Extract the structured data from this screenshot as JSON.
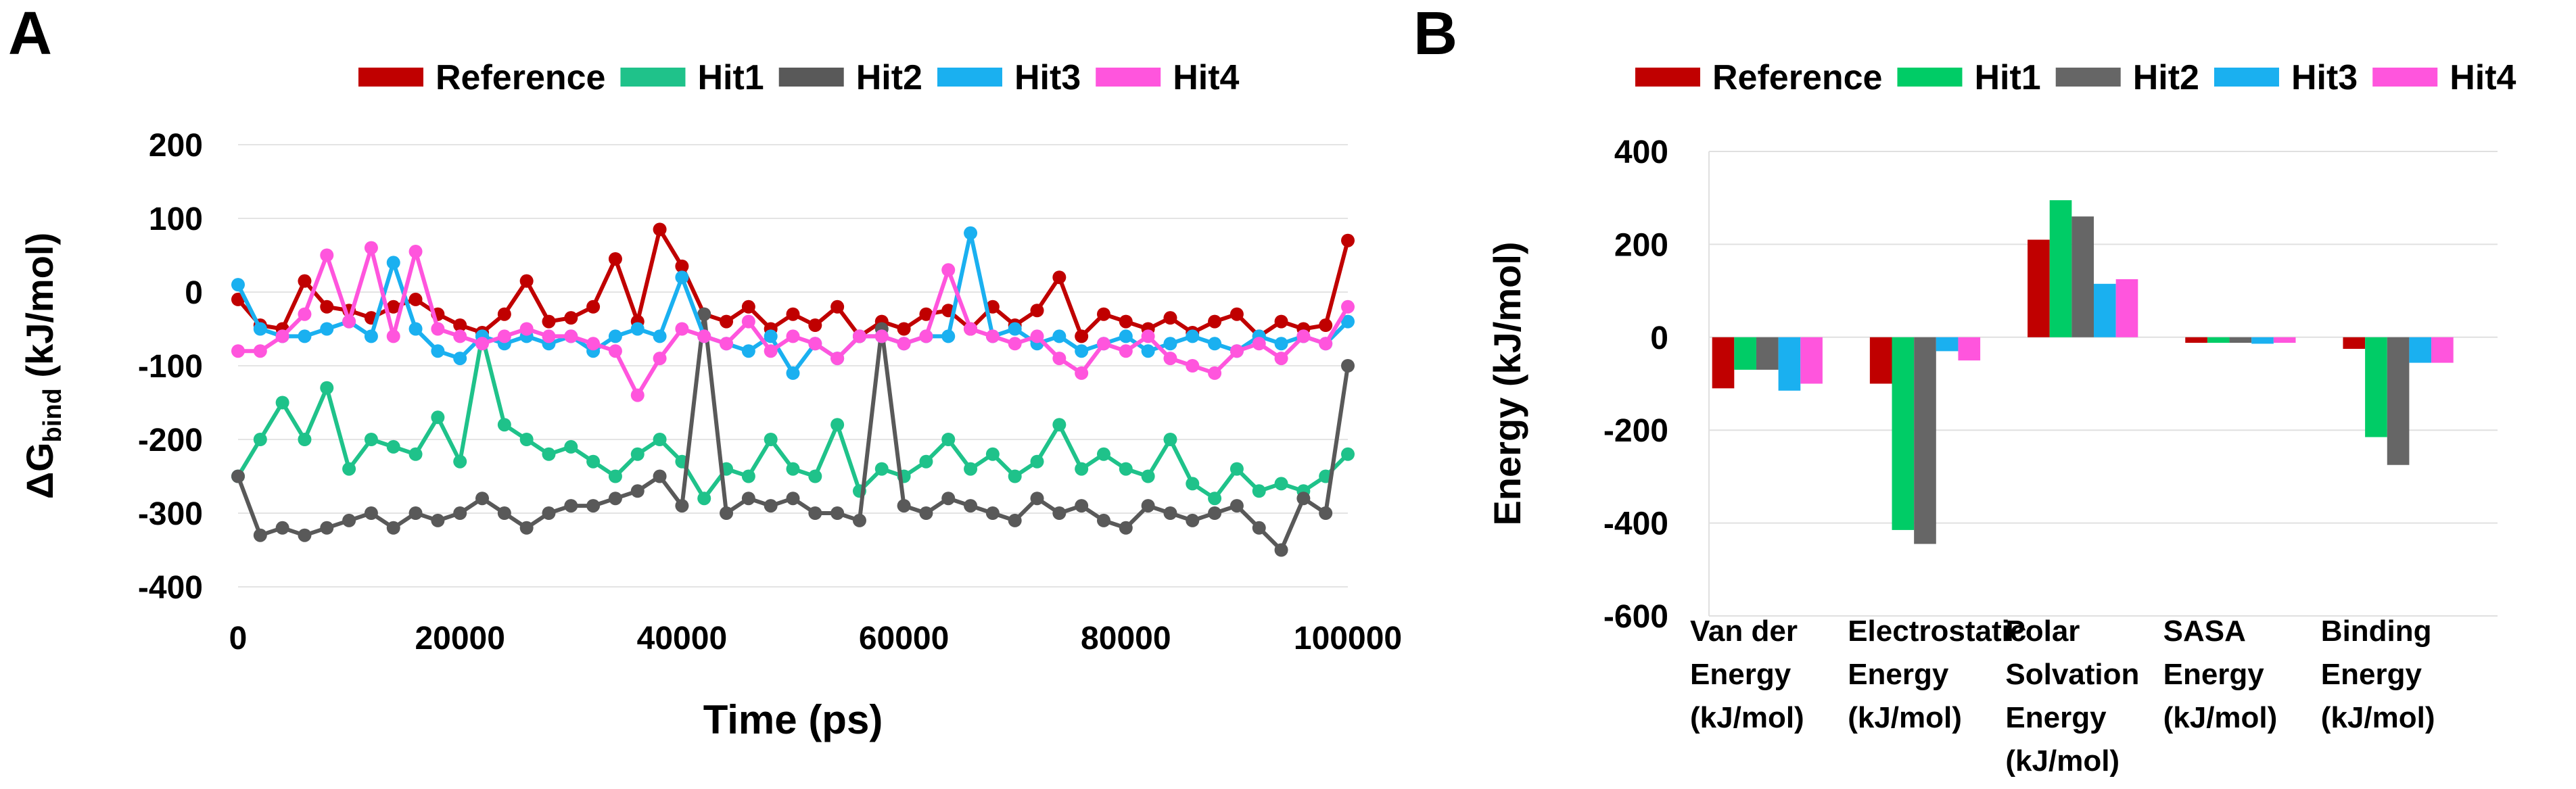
{
  "chart_data": [
    {
      "type": "line",
      "panel": "A",
      "xlabel": "Time (ps)",
      "ylabel": [
        "ΔG",
        "bind",
        " (kJ/mol)"
      ],
      "x": [
        0,
        2000,
        4000,
        6000,
        8000,
        10000,
        12000,
        14000,
        16000,
        18000,
        20000,
        22000,
        24000,
        26000,
        28000,
        30000,
        32000,
        34000,
        36000,
        38000,
        40000,
        42000,
        44000,
        46000,
        48000,
        50000,
        52000,
        54000,
        56000,
        58000,
        60000,
        62000,
        64000,
        66000,
        68000,
        70000,
        72000,
        74000,
        76000,
        78000,
        80000,
        82000,
        84000,
        86000,
        88000,
        90000,
        92000,
        94000,
        96000,
        98000,
        100000
      ],
      "xlim": [
        0,
        100000
      ],
      "xticks": [
        0,
        20000,
        40000,
        60000,
        80000,
        100000
      ],
      "ylim": [
        -400,
        200
      ],
      "yticks": [
        -400,
        -300,
        -200,
        -100,
        0,
        100,
        200
      ],
      "grid": true,
      "legend": "top",
      "series": [
        {
          "name": "Reference",
          "color": "#c00000",
          "values": [
            -10,
            -45,
            -50,
            15,
            -20,
            -25,
            -35,
            -20,
            -10,
            -30,
            -45,
            -55,
            -30,
            15,
            -40,
            -35,
            -20,
            45,
            -40,
            85,
            35,
            -30,
            -40,
            -20,
            -50,
            -30,
            -45,
            -20,
            -60,
            -40,
            -50,
            -30,
            -25,
            -50,
            -20,
            -45,
            -25,
            20,
            -60,
            -30,
            -40,
            -50,
            -35,
            -55,
            -40,
            -30,
            -60,
            -40,
            -50,
            -45,
            70
          ]
        },
        {
          "name": "Hit1",
          "color": "#1fc28a",
          "values": [
            -250,
            -200,
            -150,
            -200,
            -130,
            -240,
            -200,
            -210,
            -220,
            -170,
            -230,
            -60,
            -180,
            -200,
            -220,
            -210,
            -230,
            -250,
            -220,
            -200,
            -230,
            -280,
            -240,
            -250,
            -200,
            -240,
            -250,
            -180,
            -270,
            -240,
            -250,
            -230,
            -200,
            -240,
            -220,
            -250,
            -230,
            -180,
            -240,
            -220,
            -240,
            -250,
            -200,
            -260,
            -280,
            -240,
            -270,
            -260,
            -270,
            -250,
            -220
          ]
        },
        {
          "name": "Hit2",
          "color": "#595959",
          "values": [
            -250,
            -330,
            -320,
            -330,
            -320,
            -310,
            -300,
            -320,
            -300,
            -310,
            -300,
            -280,
            -300,
            -320,
            -300,
            -290,
            -290,
            -280,
            -270,
            -250,
            -290,
            -30,
            -300,
            -280,
            -290,
            -280,
            -300,
            -300,
            -310,
            -50,
            -290,
            -300,
            -280,
            -290,
            -300,
            -310,
            -280,
            -300,
            -290,
            -310,
            -320,
            -290,
            -300,
            -310,
            -300,
            -290,
            -320,
            -350,
            -280,
            -300,
            -100
          ]
        },
        {
          "name": "Hit3",
          "color": "#1ab0f0",
          "values": [
            10,
            -50,
            -60,
            -60,
            -50,
            -40,
            -60,
            40,
            -50,
            -80,
            -90,
            -60,
            -70,
            -60,
            -70,
            -60,
            -80,
            -60,
            -50,
            -60,
            20,
            -60,
            -70,
            -80,
            -60,
            -110,
            -70,
            -90,
            -60,
            -60,
            -70,
            -60,
            -60,
            80,
            -60,
            -50,
            -70,
            -60,
            -80,
            -70,
            -60,
            -80,
            -70,
            -60,
            -70,
            -80,
            -60,
            -70,
            -60,
            -70,
            -40
          ]
        },
        {
          "name": "Hit4",
          "color": "#ff55dd",
          "values": [
            -80,
            -80,
            -60,
            -30,
            50,
            -40,
            60,
            -60,
            55,
            -50,
            -60,
            -70,
            -60,
            -50,
            -60,
            -60,
            -70,
            -80,
            -140,
            -90,
            -50,
            -60,
            -70,
            -40,
            -80,
            -60,
            -70,
            -90,
            -60,
            -60,
            -70,
            -60,
            30,
            -50,
            -60,
            -70,
            -60,
            -90,
            -110,
            -70,
            -80,
            -60,
            -90,
            -100,
            -110,
            -80,
            -70,
            -90,
            -60,
            -70,
            -20
          ]
        }
      ]
    },
    {
      "type": "bar",
      "panel": "B",
      "ylabel": "Energy (kJ/mol)",
      "categories": [
        [
          "Van der",
          "Energy",
          "(kJ/mol)"
        ],
        [
          "Electrostatic",
          "Energy",
          "(kJ/mol)"
        ],
        [
          "Polar",
          "Solvation",
          "Energy",
          "(kJ/mol)"
        ],
        [
          "SASA",
          "Energy",
          "(kJ/mol)"
        ],
        [
          "Binding",
          "Energy",
          "(kJ/mol)"
        ]
      ],
      "ylim": [
        -600,
        400
      ],
      "yticks": [
        -600,
        -400,
        -200,
        0,
        200,
        400
      ],
      "grid": true,
      "legend": "top",
      "series": [
        {
          "name": "Reference",
          "color": "#c00000",
          "values": [
            -110,
            -100,
            210,
            -12,
            -25
          ]
        },
        {
          "name": "Hit1",
          "color": "#00cc66",
          "values": [
            -70,
            -415,
            295,
            -12,
            -215
          ]
        },
        {
          "name": "Hit2",
          "color": "#666666",
          "values": [
            -70,
            -445,
            260,
            -12,
            -275
          ]
        },
        {
          "name": "Hit3",
          "color": "#1ab0f0",
          "values": [
            -115,
            -30,
            115,
            -14,
            -55
          ]
        },
        {
          "name": "Hit4",
          "color": "#ff55dd",
          "values": [
            -100,
            -50,
            125,
            -12,
            -55
          ]
        }
      ]
    }
  ]
}
